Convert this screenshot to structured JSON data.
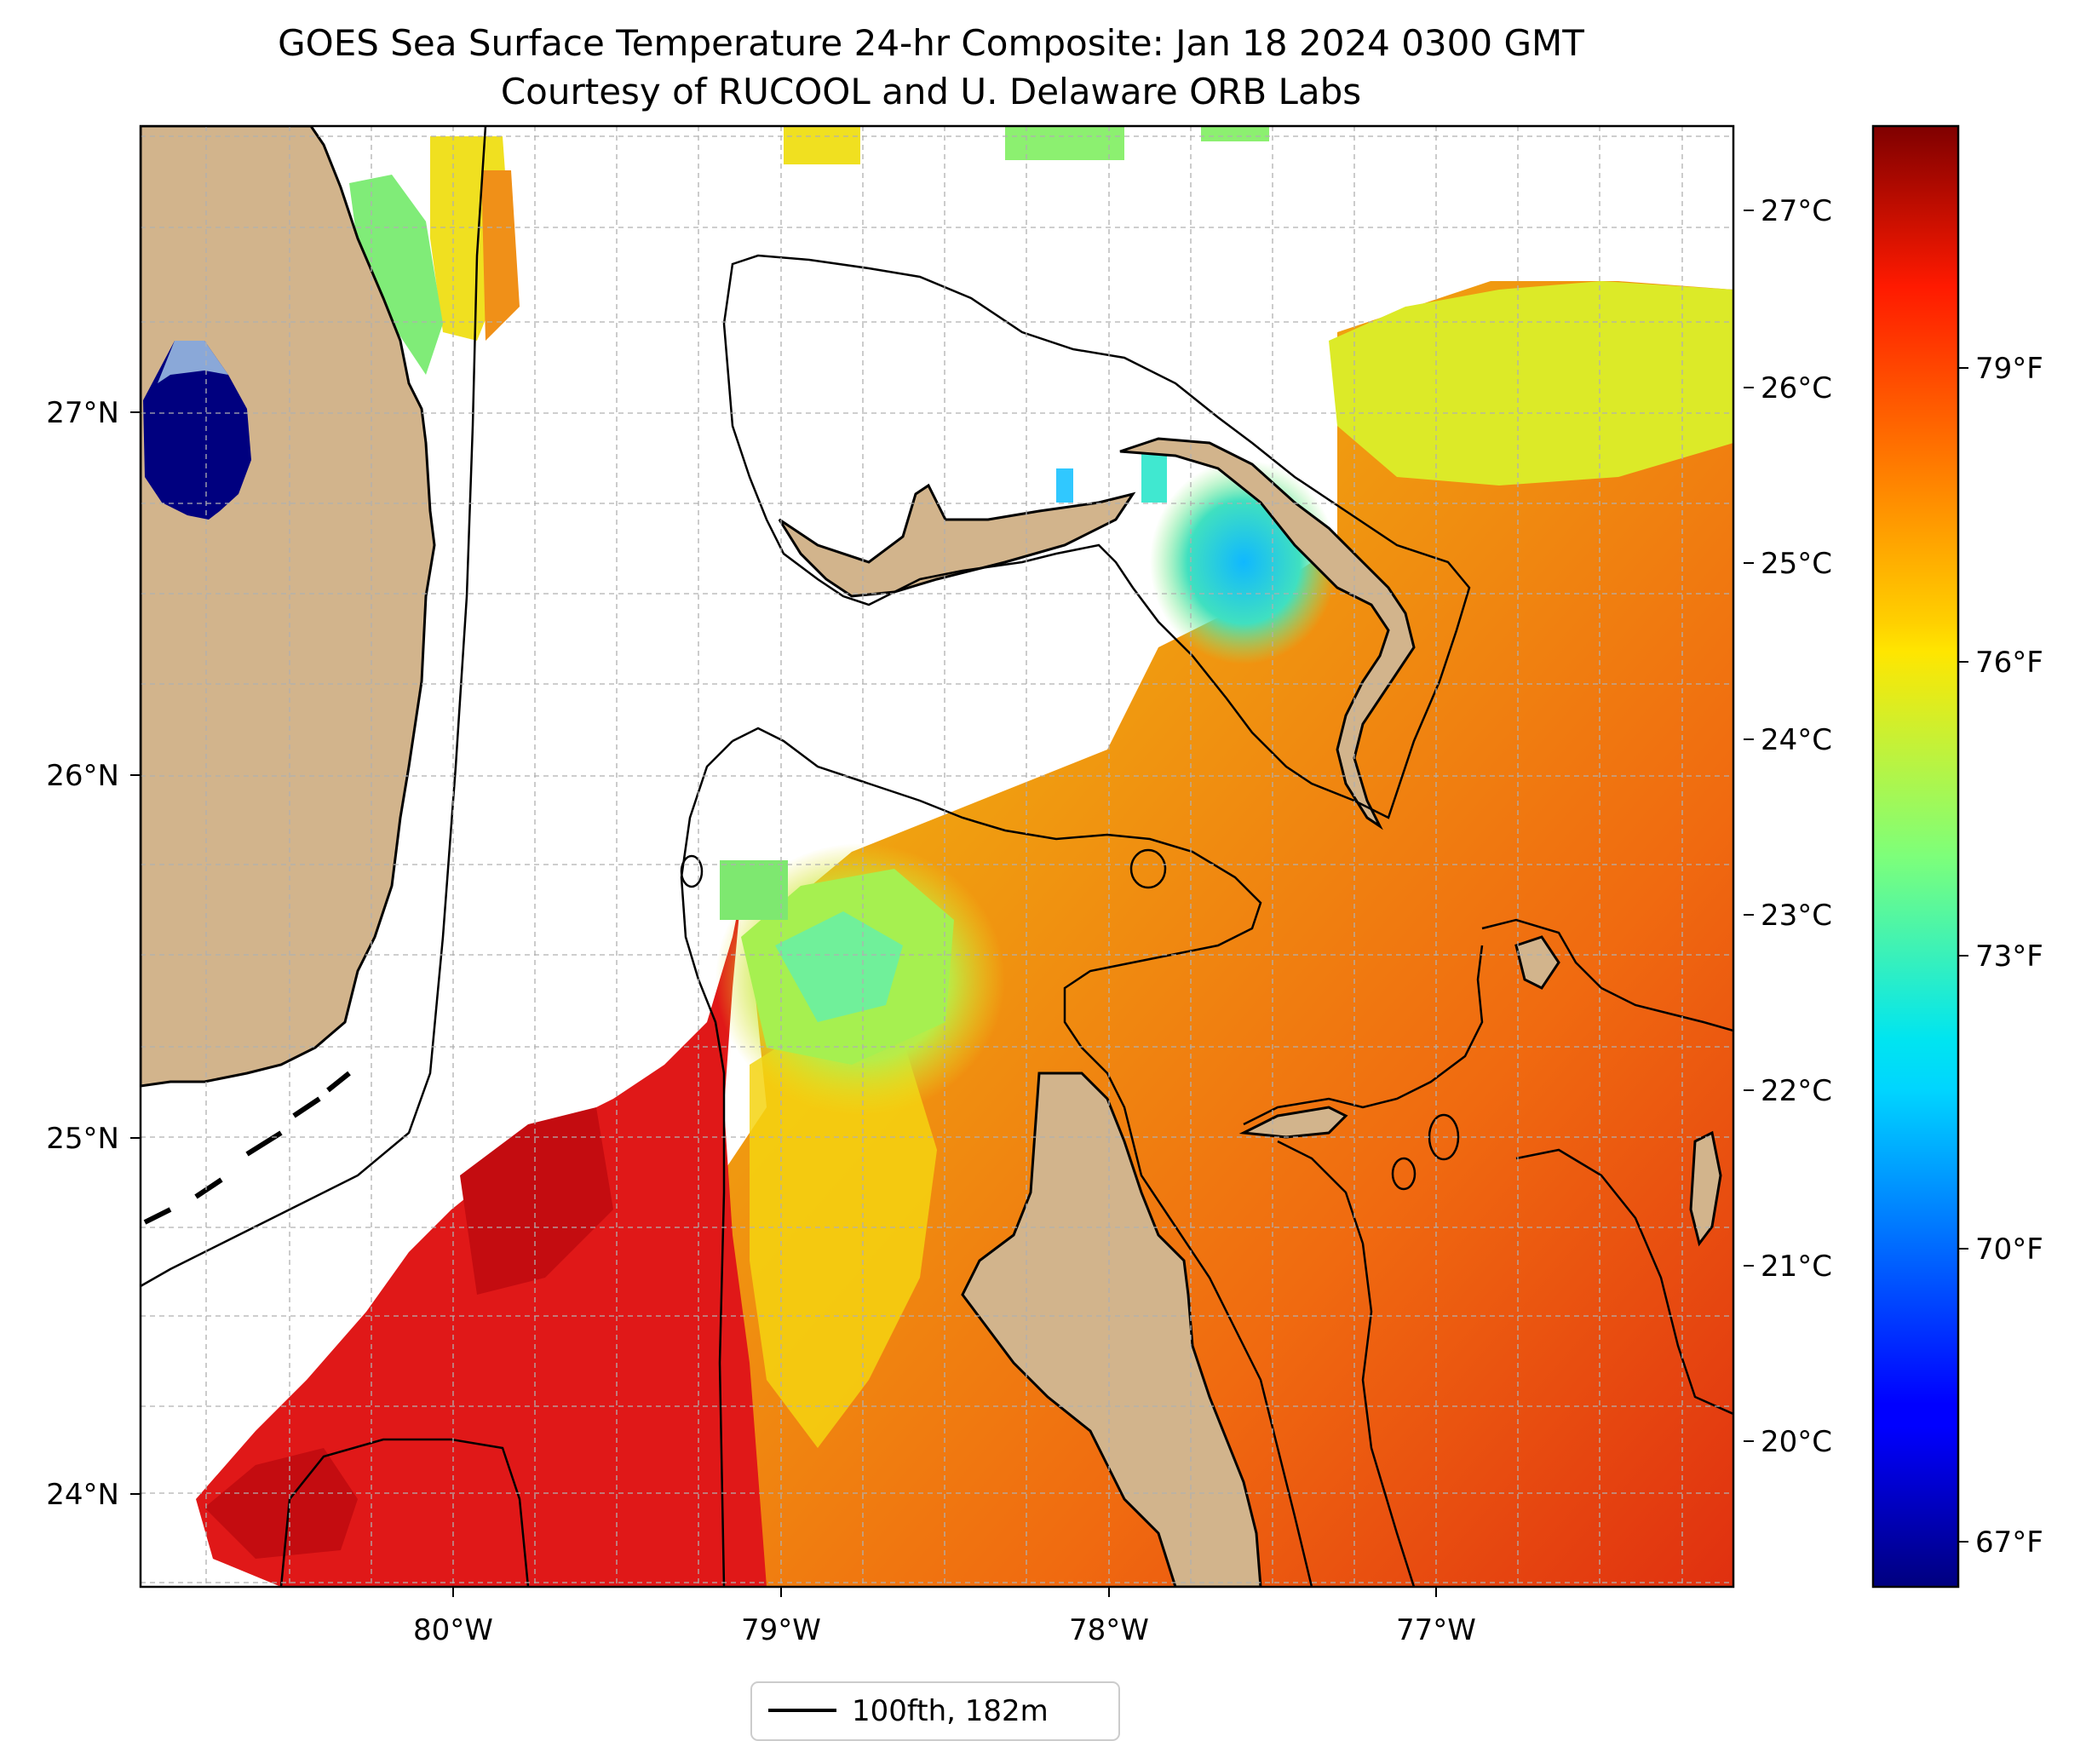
{
  "title": {
    "line1": "GOES Sea Surface Temperature 24-hr Composite: Jan 18 2024 0300 GMT",
    "line2": "Courtesy of RUCOOL and U. Delaware ORB Labs"
  },
  "map": {
    "lat_labels": [
      "27°N",
      "26°N",
      "25°N",
      "24°N"
    ],
    "lon_labels": [
      "80°W",
      "79°W",
      "78°W",
      "77°W"
    ],
    "colors": {
      "land": "#d2b48c",
      "coast": "#000000",
      "nodata": "#ffffff",
      "grid": "#b0b0b0"
    }
  },
  "legend": {
    "label": "100fth, 182m"
  },
  "colorbar": {
    "colormap": "jet",
    "celsius_labels": [
      "27°C",
      "26°C",
      "25°C",
      "24°C",
      "23°C",
      "22°C",
      "21°C",
      "20°C"
    ],
    "fahrenheit_labels": [
      "79°F",
      "76°F",
      "73°F",
      "70°F",
      "67°F"
    ]
  },
  "chart_data": {
    "type": "heatmap",
    "title": "GOES Sea Surface Temperature 24-hr Composite: Jan 18 2024 0300 GMT",
    "subtitle": "Courtesy of RUCOOL and U. Delaware ORB Labs",
    "xlim": [
      -80.95,
      -76.1
    ],
    "ylim": [
      23.75,
      27.8
    ],
    "x_ticks": [
      -80,
      -79,
      -78,
      -77
    ],
    "y_ticks": [
      27,
      26,
      25,
      24
    ],
    "color_range_c": [
      19.2,
      27.5
    ],
    "colorbar_ticks_c": [
      27,
      26,
      25,
      24,
      23,
      22,
      21,
      20
    ],
    "colorbar_ticks_f": [
      79,
      76,
      73,
      70,
      67
    ],
    "grid": true,
    "legend_position": "bottom-center"
  }
}
